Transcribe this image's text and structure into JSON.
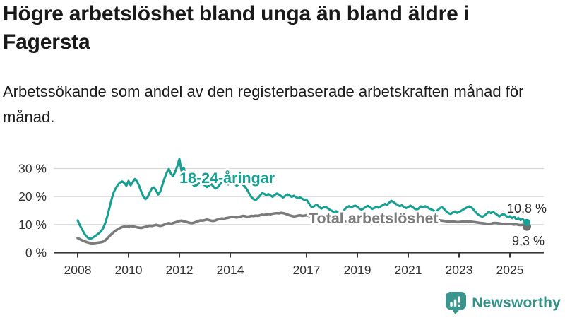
{
  "header": {
    "title": "Högre arbetslöshet bland unga än bland äldre i Fagersta",
    "subtitle": "Arbetssökande som andel av den registerbaserade arbetskraften månad för månad."
  },
  "footer": {
    "brand": "Newsworthy",
    "logo_icon": "bar-chart-speech-bubble-icon"
  },
  "colors": {
    "youth_line": "#16a093",
    "total_line": "#7b7b7b",
    "total_end_dot": "#6e6e6e",
    "axis": "#3a3a3a",
    "gridline": "#d9d9d9",
    "tick_label": "#333333",
    "end_label": "#2e2e2e",
    "brand_teal": "#35908a"
  },
  "chart_data": {
    "type": "line",
    "title": "Högre arbetslöshet bland unga än bland äldre i Fagersta",
    "subtitle": "Arbetssökande som andel av den registerbaserade arbetskraften månad för månad.",
    "x_unit": "month",
    "x_start": "2008-01",
    "x_end": "2025-09",
    "x_ticks": [
      2008,
      2010,
      2012,
      2014,
      2017,
      2019,
      2021,
      2023,
      2025
    ],
    "y_ticks": [
      0,
      10,
      20,
      30
    ],
    "y_tick_suffix": " %",
    "ylim": [
      0,
      35
    ],
    "grid": true,
    "legend_position": "inline-labels",
    "series": [
      {
        "name": "18-24-åringar",
        "color": "#16a093",
        "end_label": "10,8 %",
        "end_value": 10.8,
        "values": [
          11.5,
          9.8,
          8.4,
          7.0,
          5.9,
          5.2,
          4.9,
          5.3,
          5.8,
          6.3,
          6.9,
          7.6,
          8.7,
          10.5,
          13.0,
          16.0,
          19.0,
          21.5,
          23.0,
          24.2,
          25.0,
          25.4,
          24.8,
          23.9,
          25.6,
          24.0,
          25.2,
          26.3,
          25.4,
          23.8,
          21.8,
          20.0,
          19.1,
          19.8,
          21.5,
          22.9,
          23.3,
          22.2,
          20.7,
          21.8,
          24.2,
          26.5,
          28.5,
          29.8,
          28.2,
          27.3,
          28.8,
          30.8,
          33.4,
          29.2,
          30.3,
          28.2,
          26.6,
          25.4,
          24.5,
          23.8,
          24.0,
          24.6,
          25.0,
          24.4,
          24.0,
          23.4,
          23.9,
          24.5,
          23.6,
          22.9,
          23.3,
          24.2,
          25.3,
          25.6,
          24.9,
          24.3,
          24.7,
          25.2,
          24.6,
          23.9,
          24.3,
          24.8,
          24.2,
          23.5,
          22.4,
          21.0,
          19.8,
          19.1,
          18.8,
          19.4,
          20.3,
          21.2,
          21.0,
          20.5,
          20.9,
          20.4,
          19.9,
          20.6,
          21.1,
          20.7,
          20.2,
          19.7,
          20.3,
          20.8,
          20.4,
          19.9,
          20.3,
          19.8,
          19.4,
          19.7,
          19.2,
          18.8,
          18.9,
          17.8,
          16.6,
          16.2,
          16.8,
          17.0,
          16.3,
          15.7,
          16.1,
          16.4,
          15.8,
          15.3,
          14.9,
          14.4,
          14.8,
          14.3,
          14.2,
          14.6,
          15.4,
          16.2,
          16.6,
          16.1,
          16.5,
          16.8,
          16.4,
          15.7,
          15.3,
          15.8,
          16.3,
          16.7,
          16.2,
          15.6,
          15.9,
          16.4,
          16.0,
          16.5,
          16.9,
          17.4,
          17.0,
          17.8,
          18.5,
          18.1,
          17.5,
          17.0,
          16.6,
          16.9,
          16.3,
          15.9,
          16.2,
          16.8,
          16.3,
          15.7,
          15.3,
          15.8,
          16.5,
          16.1,
          16.6,
          16.2,
          15.7,
          15.4,
          15.0,
          14.4,
          15.2,
          15.9,
          16.2,
          15.5,
          14.7,
          14.1,
          13.8,
          14.3,
          14.7,
          14.2,
          14.5,
          14.9,
          15.4,
          15.8,
          16.2,
          16.5,
          16.0,
          15.2,
          14.3,
          13.6,
          13.1,
          12.8,
          13.2,
          13.9,
          14.5,
          14.1,
          14.6,
          14.0,
          13.5,
          12.9,
          13.4,
          13.8,
          13.2,
          12.7,
          13.0,
          12.3,
          12.8,
          11.9,
          12.4,
          11.6,
          12.0,
          11.2,
          10.8
        ]
      },
      {
        "name": "Total arbetslöshet",
        "color": "#7b7b7b",
        "end_label": "9,3 %",
        "end_value": 9.3,
        "values": [
          5.2,
          4.8,
          4.4,
          4.1,
          3.8,
          3.6,
          3.4,
          3.3,
          3.4,
          3.5,
          3.6,
          3.7,
          3.9,
          4.4,
          5.1,
          5.9,
          6.6,
          7.3,
          7.9,
          8.4,
          8.8,
          9.1,
          9.3,
          9.2,
          9.3,
          9.5,
          9.4,
          9.2,
          9.0,
          8.9,
          8.8,
          9.0,
          9.2,
          9.4,
          9.6,
          9.5,
          9.7,
          9.9,
          9.7,
          9.5,
          9.7,
          10.0,
          10.3,
          10.5,
          10.3,
          10.5,
          10.8,
          11.0,
          11.3,
          11.4,
          11.2,
          11.0,
          10.8,
          10.6,
          10.5,
          10.7,
          11.0,
          11.3,
          11.5,
          11.4,
          11.6,
          11.8,
          11.6,
          11.4,
          11.3,
          11.5,
          11.8,
          12.0,
          12.2,
          12.1,
          12.3,
          12.4,
          12.6,
          12.8,
          12.7,
          12.5,
          12.7,
          12.9,
          13.1,
          13.0,
          12.8,
          12.9,
          13.1,
          13.0,
          13.2,
          13.1,
          13.3,
          13.5,
          13.4,
          13.6,
          13.8,
          13.7,
          13.9,
          14.0,
          14.1,
          14.0,
          14.2,
          14.1,
          13.9,
          13.6,
          13.3,
          13.1,
          12.9,
          13.0,
          13.2,
          13.3,
          13.1,
          13.2,
          13.3,
          13.1,
          12.9,
          12.7,
          12.5,
          12.3,
          12.1,
          11.9,
          11.8,
          11.7,
          11.6,
          11.5,
          11.6,
          11.5,
          11.3,
          11.2,
          11.1,
          11.2,
          11.3,
          11.2,
          11.1,
          11.0,
          11.1,
          11.2,
          11.3,
          11.2,
          11.1,
          11.0,
          11.1,
          11.2,
          11.1,
          11.0,
          11.1,
          11.2,
          11.3,
          11.4,
          11.5,
          11.6,
          12.0,
          12.5,
          12.8,
          12.7,
          12.6,
          12.5,
          12.4,
          12.3,
          12.2,
          12.1,
          12.2,
          12.3,
          12.2,
          12.0,
          11.9,
          11.8,
          11.9,
          11.8,
          11.7,
          11.8,
          11.9,
          12.0,
          11.9,
          11.8,
          11.6,
          11.5,
          11.4,
          11.3,
          11.2,
          11.1,
          11.0,
          11.1,
          11.0,
          10.9,
          10.9,
          11.0,
          11.1,
          11.0,
          11.1,
          11.2,
          11.0,
          10.9,
          10.8,
          10.7,
          10.6,
          10.5,
          10.4,
          10.3,
          10.2,
          10.3,
          10.5,
          10.6,
          10.5,
          10.4,
          10.3,
          10.2,
          10.3,
          10.2,
          10.2,
          10.1,
          10.0,
          10.1,
          9.9,
          9.8,
          9.9,
          9.6,
          9.3
        ]
      }
    ]
  }
}
